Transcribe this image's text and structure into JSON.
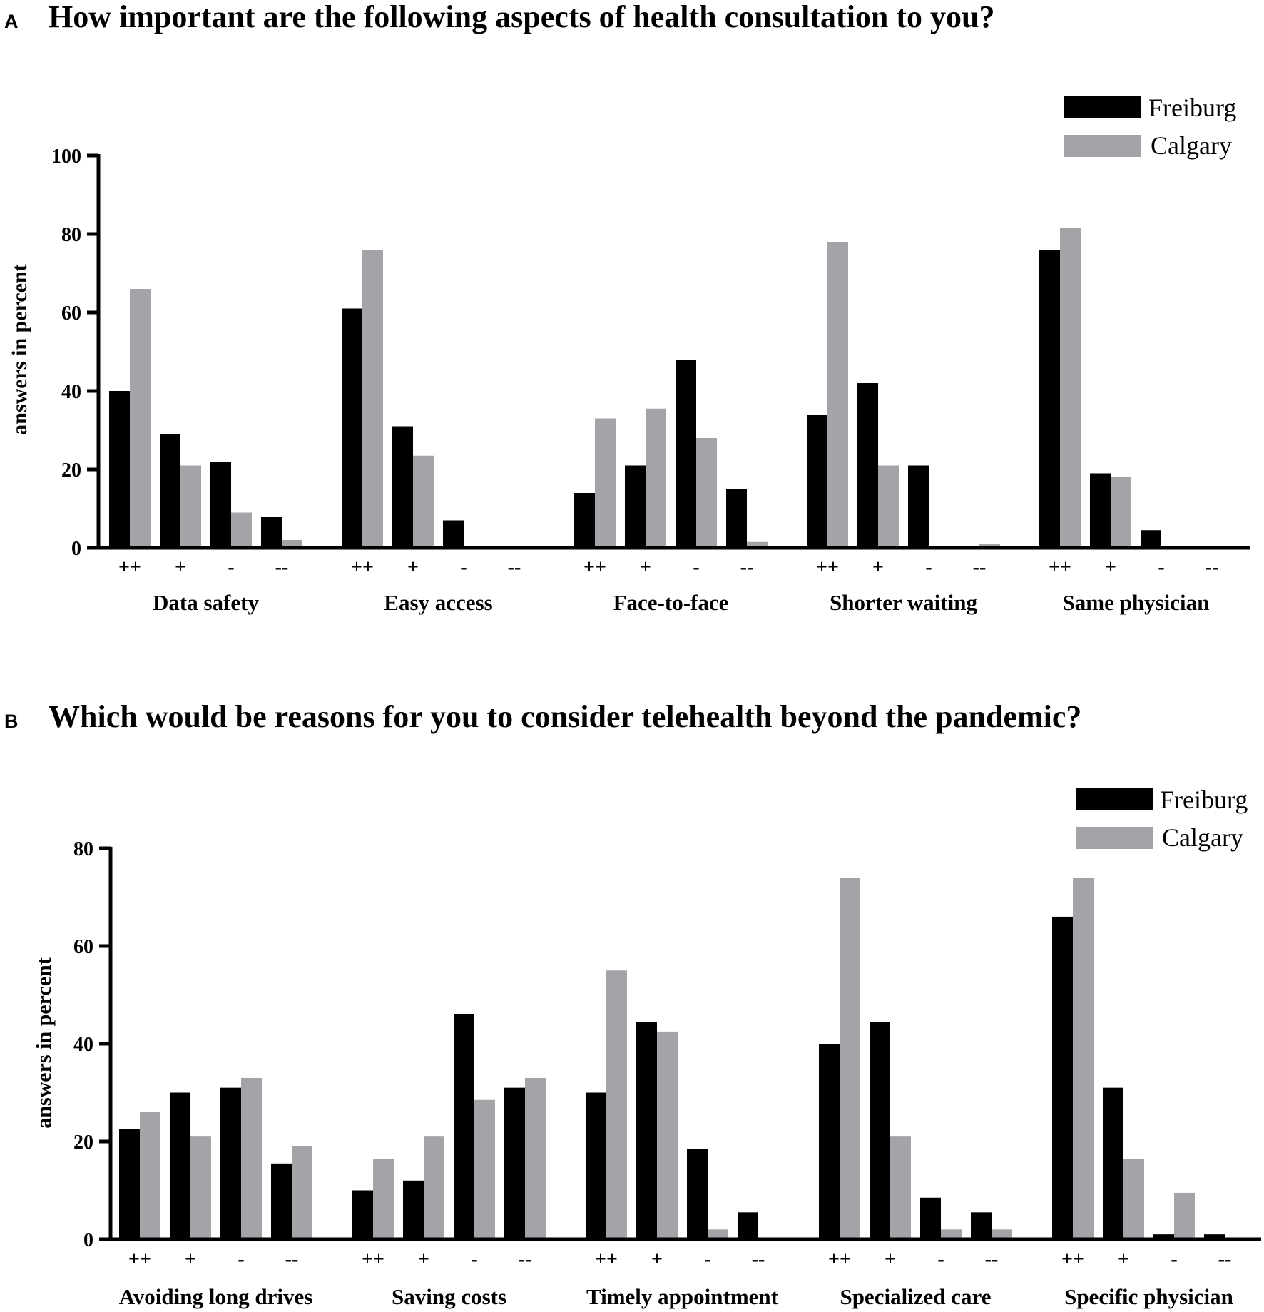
{
  "chart_data": [
    {
      "panel": "A",
      "type": "bar",
      "title": "How important are the following aspects of health consultation to you?",
      "ylabel": "answers in percent",
      "ylim": [
        0,
        100
      ],
      "yticks": [
        0,
        20,
        40,
        60,
        80,
        100
      ],
      "legend_position": "top-right",
      "levels": [
        "++",
        "+",
        "-",
        "--"
      ],
      "groups": [
        "Data safety",
        "Easy access",
        "Face-to-face",
        "Shorter waiting",
        "Same physician"
      ],
      "series": [
        {
          "name": "Freiburg",
          "color": "#000000",
          "values": [
            [
              40,
              29,
              22,
              8
            ],
            [
              61,
              31,
              7,
              0
            ],
            [
              14,
              21,
              48,
              15
            ],
            [
              34,
              42,
              21,
              0
            ],
            [
              76,
              19,
              4.5,
              0
            ]
          ]
        },
        {
          "name": "Calgary",
          "color": "#a4a4a8",
          "values": [
            [
              66,
              21,
              9,
              2
            ],
            [
              76,
              23.5,
              0,
              0
            ],
            [
              33,
              35.5,
              28,
              1.5
            ],
            [
              78,
              21,
              0,
              1
            ],
            [
              81.5,
              18,
              0,
              0
            ]
          ]
        }
      ]
    },
    {
      "panel": "B",
      "type": "bar",
      "title": "Which would be reasons for you to consider telehealth beyond the pandemic?",
      "ylabel": "answers in percent",
      "ylim": [
        0,
        80
      ],
      "yticks": [
        0,
        20,
        40,
        60,
        80
      ],
      "legend_position": "top-right",
      "levels": [
        "++",
        "+",
        "-",
        "--"
      ],
      "groups": [
        "Avoiding long drives",
        "Saving costs",
        "Timely appointment",
        "Specialized care",
        "Specific physician"
      ],
      "series": [
        {
          "name": "Freiburg",
          "color": "#000000",
          "values": [
            [
              22.5,
              30,
              31,
              15.5
            ],
            [
              10,
              12,
              46,
              31
            ],
            [
              30,
              44.5,
              18.5,
              5.5
            ],
            [
              40,
              44.5,
              8.5,
              5.5
            ],
            [
              66,
              31,
              1,
              1
            ]
          ]
        },
        {
          "name": "Calgary",
          "color": "#a4a4a8",
          "values": [
            [
              26,
              21,
              33,
              19
            ],
            [
              16.5,
              21,
              28.5,
              33
            ],
            [
              55,
              42.5,
              2,
              0
            ],
            [
              74,
              21,
              2,
              2
            ],
            [
              74,
              16.5,
              9.5,
              0
            ]
          ]
        }
      ]
    }
  ]
}
